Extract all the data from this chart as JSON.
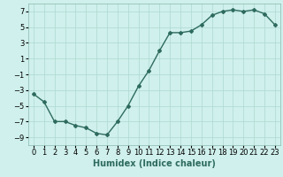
{
  "xlabel": "Humidex (Indice chaleur)",
  "x": [
    0,
    1,
    2,
    3,
    4,
    5,
    6,
    7,
    8,
    9,
    10,
    11,
    12,
    13,
    14,
    15,
    16,
    17,
    18,
    19,
    20,
    21,
    22,
    23
  ],
  "y": [
    -3.5,
    -4.5,
    -7.0,
    -7.0,
    -7.5,
    -7.8,
    -8.5,
    -8.7,
    -7.0,
    -5.0,
    -2.5,
    -0.5,
    2.0,
    4.3,
    4.3,
    4.5,
    5.3,
    6.5,
    7.0,
    7.2,
    7.0,
    7.2,
    6.7,
    5.3
  ],
  "line_color": "#2e6b5e",
  "marker": "D",
  "marker_size": 2.0,
  "bg_color": "#cff0ec",
  "grid_color": "#aed8d2",
  "ylim": [
    -10,
    8
  ],
  "xlim": [
    -0.5,
    23.5
  ],
  "yticks": [
    -9,
    -7,
    -5,
    -3,
    -1,
    1,
    3,
    5,
    7
  ],
  "xtick_labels": [
    "0",
    "1",
    "2",
    "3",
    "4",
    "5",
    "6",
    "7",
    "8",
    "9",
    "10",
    "11",
    "12",
    "13",
    "14",
    "15",
    "16",
    "17",
    "18",
    "19",
    "20",
    "21",
    "22",
    "23"
  ],
  "linewidth": 1.0,
  "xlabel_fontsize": 7.0,
  "tick_fontsize": 6.0
}
